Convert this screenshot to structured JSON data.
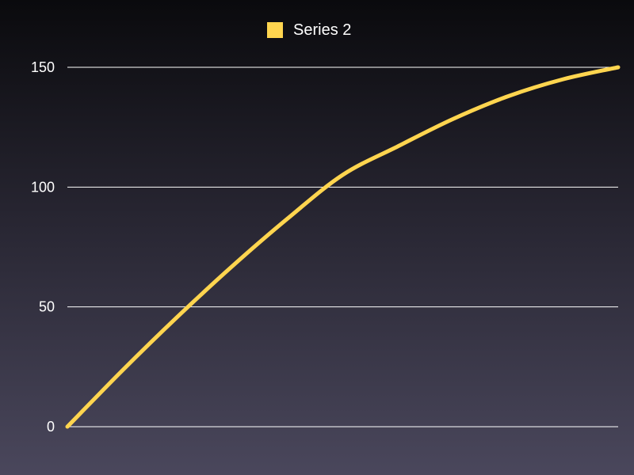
{
  "chart_data": {
    "type": "line",
    "title": "",
    "xlabel": "",
    "ylabel": "",
    "ylim": [
      0,
      150
    ],
    "yticks": [
      0,
      50,
      100,
      150
    ],
    "grid": true,
    "legend_position": "top-center",
    "x": [
      0,
      0.1,
      0.2,
      0.3,
      0.4,
      0.5,
      0.6,
      0.7,
      0.8,
      0.9,
      1.0
    ],
    "series": [
      {
        "name": "Series 2",
        "color": "#ffd54f",
        "values": [
          0,
          23.5,
          45.9,
          67.1,
          86.9,
          105.1,
          117.0,
          128.4,
          137.9,
          145.0,
          150
        ]
      }
    ]
  }
}
